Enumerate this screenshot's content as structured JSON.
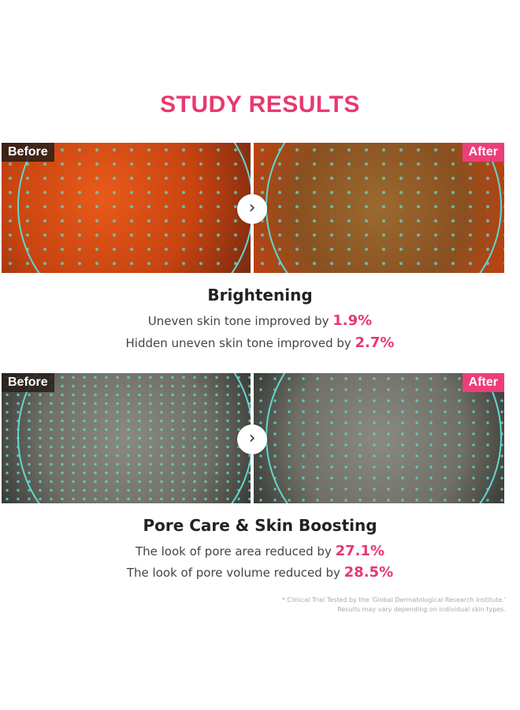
{
  "title": "STUDY RESULTS",
  "labels": {
    "before": "Before",
    "after": "After"
  },
  "sections": [
    {
      "heading": "Brightening",
      "lines": [
        {
          "text": "Uneven skin tone improved by ",
          "value": "1.9%"
        },
        {
          "text": "Hidden uneven skin tone improved by ",
          "value": "2.7%"
        }
      ]
    },
    {
      "heading": "Pore Care & Skin Boosting",
      "lines": [
        {
          "text": "The look of pore area reduced by ",
          "value": "27.1%"
        },
        {
          "text": "The look of pore volume reduced by ",
          "value": "28.5%"
        }
      ]
    }
  ],
  "footnote": {
    "line1": "* Clinical Trial Tested by the 'Global Dermatological Research Institute.'",
    "line2": "Results may vary depending on individual skin types."
  },
  "colors": {
    "accent": "#e8386f",
    "outline": "#5fd8d0"
  }
}
